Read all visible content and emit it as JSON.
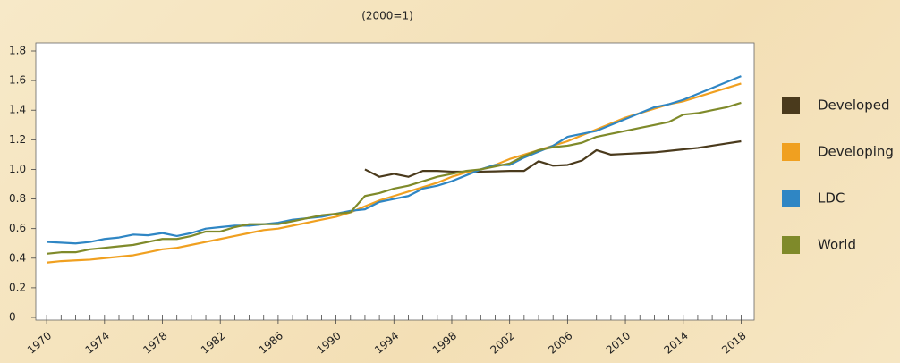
{
  "chart_data": {
    "type": "line",
    "title": "(2000=1)",
    "x": [
      1970,
      1971,
      1972,
      1973,
      1974,
      1975,
      1976,
      1977,
      1978,
      1979,
      1980,
      1981,
      1982,
      1983,
      1984,
      1985,
      1986,
      1987,
      1988,
      1989,
      1990,
      1991,
      1992,
      1993,
      1994,
      1995,
      1996,
      1997,
      1998,
      1999,
      2000,
      2001,
      2002,
      2003,
      2004,
      2005,
      2006,
      2007,
      2008,
      2009,
      2010,
      2011,
      2012,
      2013,
      2014,
      2015,
      2016,
      2017,
      2018
    ],
    "series": [
      {
        "name": "Developed",
        "color": "#4a3a1c",
        "values": [
          null,
          null,
          null,
          null,
          null,
          null,
          null,
          null,
          null,
          null,
          null,
          null,
          null,
          null,
          null,
          null,
          null,
          null,
          null,
          null,
          null,
          null,
          1.0,
          0.95,
          0.97,
          0.95,
          0.99,
          0.99,
          0.985,
          0.985,
          0.985,
          0.987,
          0.99,
          0.99,
          1.055,
          1.025,
          1.03,
          1.06,
          1.13,
          1.1,
          1.105,
          1.11,
          1.115,
          1.125,
          1.135,
          1.145,
          1.16,
          1.175,
          1.19
        ]
      },
      {
        "name": "Developing",
        "color": "#f0a020",
        "values": [
          0.37,
          0.38,
          0.385,
          0.39,
          0.4,
          0.41,
          0.42,
          0.44,
          0.46,
          0.47,
          0.49,
          0.51,
          0.53,
          0.55,
          0.57,
          0.59,
          0.6,
          0.62,
          0.64,
          0.66,
          0.68,
          0.71,
          0.75,
          0.79,
          0.82,
          0.85,
          0.88,
          0.91,
          0.95,
          0.98,
          1.0,
          1.03,
          1.07,
          1.1,
          1.13,
          1.16,
          1.19,
          1.23,
          1.27,
          1.31,
          1.35,
          1.38,
          1.41,
          1.44,
          1.46,
          1.49,
          1.52,
          1.55,
          1.58
        ]
      },
      {
        "name": "LDC",
        "color": "#2f86c4",
        "values": [
          0.51,
          0.505,
          0.5,
          0.51,
          0.53,
          0.54,
          0.56,
          0.555,
          0.57,
          0.55,
          0.57,
          0.6,
          0.61,
          0.62,
          0.62,
          0.63,
          0.64,
          0.66,
          0.67,
          0.68,
          0.7,
          0.72,
          0.73,
          0.78,
          0.8,
          0.82,
          0.87,
          0.89,
          0.92,
          0.96,
          1.0,
          1.03,
          1.03,
          1.08,
          1.12,
          1.16,
          1.22,
          1.24,
          1.26,
          1.3,
          1.34,
          1.38,
          1.42,
          1.44,
          1.47,
          1.51,
          1.55,
          1.59,
          1.63
        ]
      },
      {
        "name": "World",
        "color": "#7f8a2a",
        "values": [
          0.43,
          0.44,
          0.44,
          0.46,
          0.47,
          0.48,
          0.49,
          0.51,
          0.53,
          0.53,
          0.55,
          0.58,
          0.58,
          0.61,
          0.63,
          0.63,
          0.63,
          0.65,
          0.67,
          0.69,
          0.7,
          0.71,
          0.82,
          0.84,
          0.87,
          0.89,
          0.92,
          0.95,
          0.97,
          0.99,
          1.0,
          1.02,
          1.04,
          1.09,
          1.13,
          1.15,
          1.16,
          1.18,
          1.22,
          1.24,
          1.26,
          1.28,
          1.3,
          1.32,
          1.37,
          1.38,
          1.4,
          1.42,
          1.45
        ]
      }
    ],
    "xlim": [
      1969.25,
      2018.9
    ],
    "xticks": [
      1970,
      1974,
      1978,
      1982,
      1986,
      1990,
      1994,
      1998,
      2002,
      2006,
      2010,
      2014,
      2018
    ],
    "ylim": [
      0,
      1.8
    ],
    "yticks": [
      0,
      0.2,
      0.4,
      0.6,
      0.8,
      {
        "value": 1,
        "label": "1.0"
      },
      1.2,
      1.4,
      1.6,
      1.8
    ],
    "legend": "right"
  }
}
